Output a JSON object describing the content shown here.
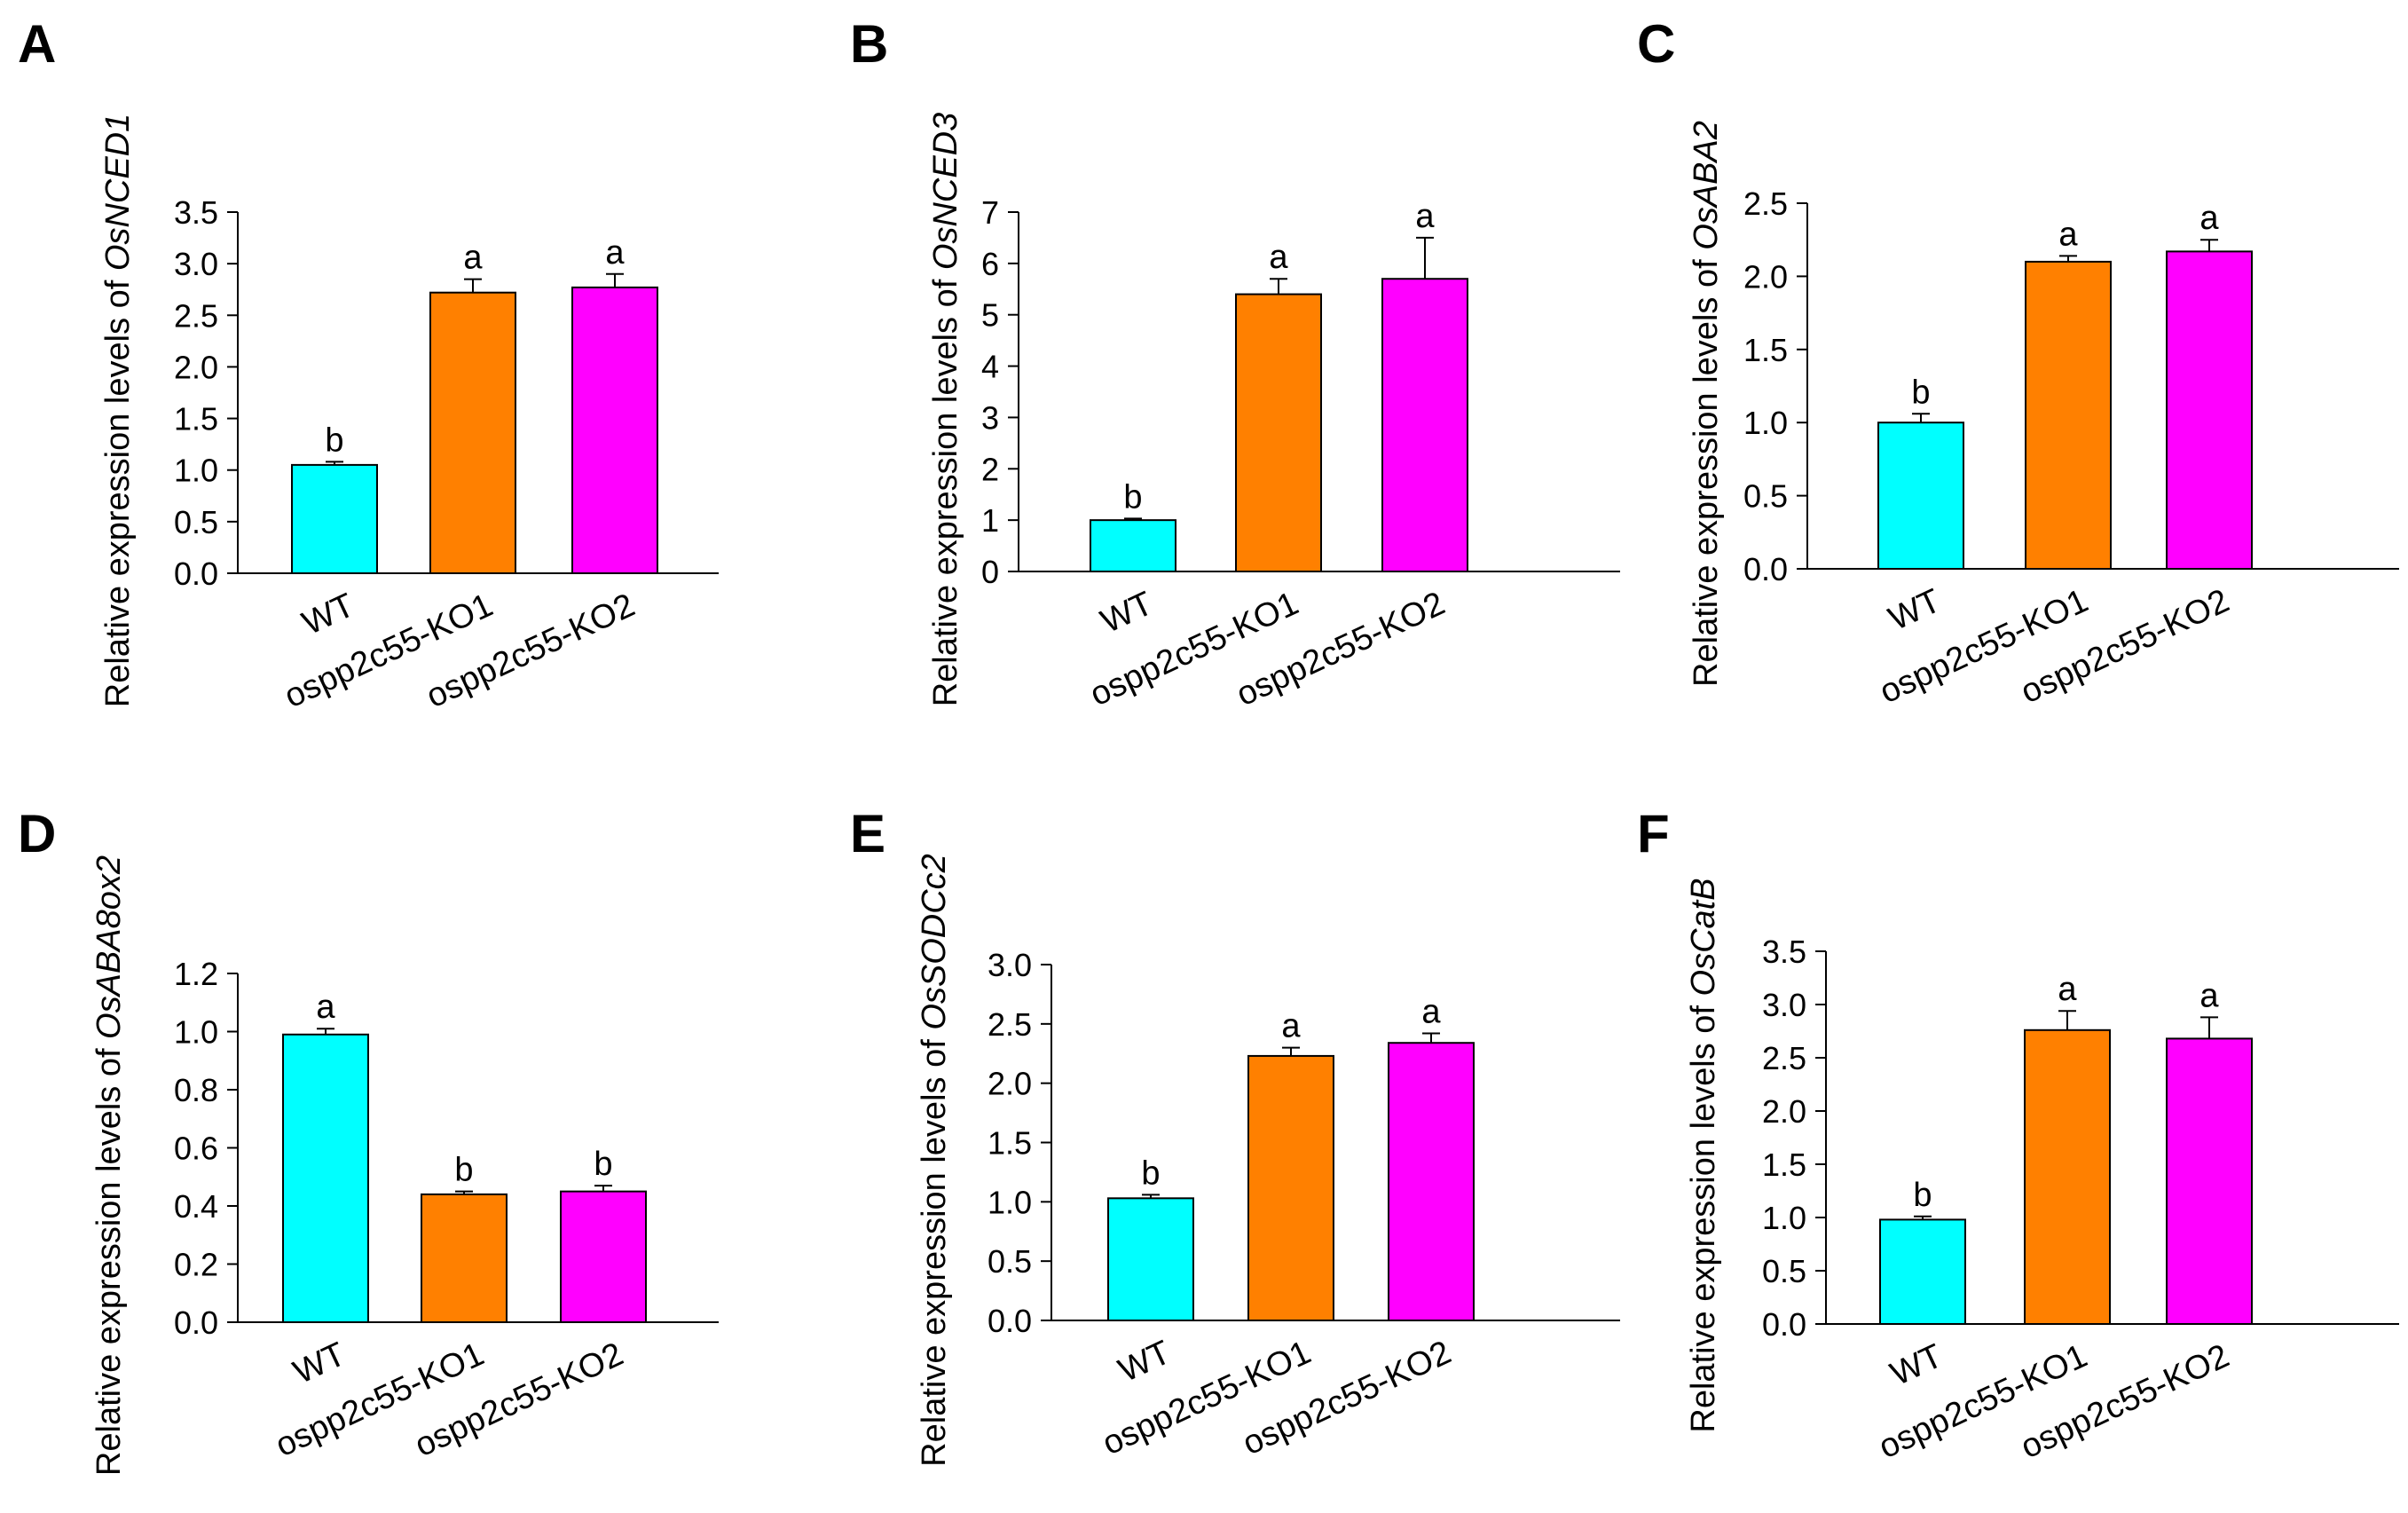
{
  "chart_data": [
    {
      "panel": "A",
      "type": "bar",
      "ylabel_prefix": "Relative expression levels of ",
      "gene": "OsNCED1",
      "categories": [
        "WT",
        "ospp2c55-KO1",
        "ospp2c55-KO2"
      ],
      "values": [
        1.05,
        2.72,
        2.77
      ],
      "errors": [
        0.03,
        0.13,
        0.13
      ],
      "significance": [
        "b",
        "a",
        "a"
      ],
      "ylim": [
        0,
        3.5
      ],
      "yticks": [
        "0.0",
        "0.5",
        "1.0",
        "1.5",
        "2.0",
        "2.5",
        "3.0",
        "3.5"
      ],
      "colors": [
        "#00FFFF",
        "#FF8000",
        "#FF00FF"
      ]
    },
    {
      "panel": "B",
      "type": "bar",
      "ylabel_prefix": "Relative expression levels of ",
      "gene": "OsNCED3",
      "categories": [
        "WT",
        "ospp2c55-KO1",
        "ospp2c55-KO2"
      ],
      "values": [
        1.0,
        5.4,
        5.7
      ],
      "errors": [
        0.03,
        0.3,
        0.8
      ],
      "significance": [
        "b",
        "a",
        "a"
      ],
      "ylim": [
        0,
        7
      ],
      "yticks": [
        "0",
        "1",
        "2",
        "3",
        "4",
        "5",
        "6",
        "7"
      ],
      "colors": [
        "#00FFFF",
        "#FF8000",
        "#FF00FF"
      ]
    },
    {
      "panel": "C",
      "type": "bar",
      "ylabel_prefix": "Relative expression levels of ",
      "gene": "OsABA2",
      "categories": [
        "WT",
        "ospp2c55-KO1",
        "ospp2c55-KO2"
      ],
      "values": [
        1.0,
        2.1,
        2.17
      ],
      "errors": [
        0.06,
        0.04,
        0.08
      ],
      "significance": [
        "b",
        "a",
        "a"
      ],
      "ylim": [
        0,
        2.5
      ],
      "yticks": [
        "0.0",
        "0.5",
        "1.0",
        "1.5",
        "2.0",
        "2.5"
      ],
      "colors": [
        "#00FFFF",
        "#FF8000",
        "#FF00FF"
      ]
    },
    {
      "panel": "D",
      "type": "bar",
      "ylabel_prefix": "Relative expression levels of ",
      "gene": "OsABA8ox2",
      "categories": [
        "WT",
        "ospp2c55-KO1",
        "ospp2c55-KO2"
      ],
      "values": [
        0.99,
        0.44,
        0.45
      ],
      "errors": [
        0.02,
        0.01,
        0.02
      ],
      "significance": [
        "a",
        "b",
        "b"
      ],
      "ylim": [
        0,
        1.2
      ],
      "yticks": [
        "0.0",
        "0.2",
        "0.4",
        "0.6",
        "0.8",
        "1.0",
        "1.2"
      ],
      "colors": [
        "#00FFFF",
        "#FF8000",
        "#FF00FF"
      ]
    },
    {
      "panel": "E",
      "type": "bar",
      "ylabel_prefix": "Relative expression levels of ",
      "gene": "OsSODCc2",
      "categories": [
        "WT",
        "ospp2c55-KO1",
        "ospp2c55-KO2"
      ],
      "values": [
        1.03,
        2.23,
        2.34
      ],
      "errors": [
        0.03,
        0.07,
        0.08
      ],
      "significance": [
        "b",
        "a",
        "a"
      ],
      "ylim": [
        0,
        3.0
      ],
      "yticks": [
        "0.0",
        "0.5",
        "1.0",
        "1.5",
        "2.0",
        "2.5",
        "3.0"
      ],
      "colors": [
        "#00FFFF",
        "#FF8000",
        "#FF00FF"
      ]
    },
    {
      "panel": "F",
      "type": "bar",
      "ylabel_prefix": "Relative expression levels of ",
      "gene": "OsCatB",
      "categories": [
        "WT",
        "ospp2c55-KO1",
        "ospp2c55-KO2"
      ],
      "values": [
        0.98,
        2.76,
        2.68
      ],
      "errors": [
        0.03,
        0.18,
        0.2
      ],
      "significance": [
        "b",
        "a",
        "a"
      ],
      "ylim": [
        0,
        3.5
      ],
      "yticks": [
        "0.0",
        "0.5",
        "1.0",
        "1.5",
        "2.0",
        "2.5",
        "3.0",
        "3.5"
      ],
      "colors": [
        "#00FFFF",
        "#FF8000",
        "#FF00FF"
      ]
    }
  ]
}
